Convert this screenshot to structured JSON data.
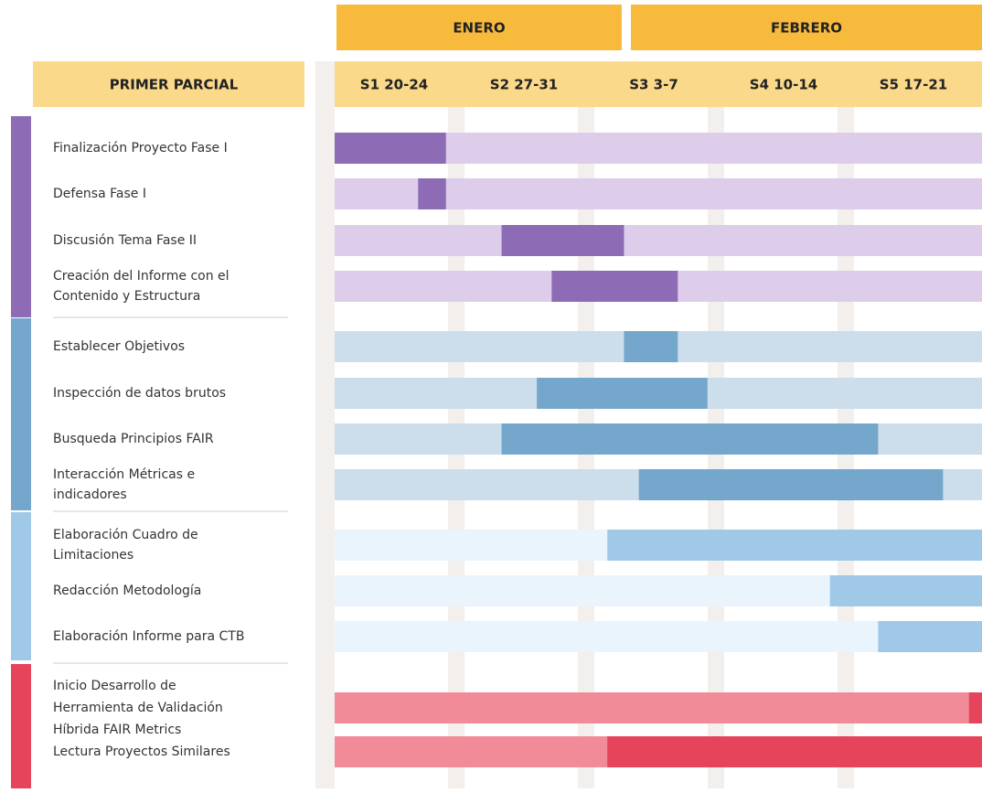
{
  "chart_data": {
    "type": "gantt",
    "header": "PRIMER PARCIAL",
    "months": [
      "ENERO",
      "FEBRERO"
    ],
    "categories": [
      "S1 20-24",
      "S2 27-31",
      "S3 3-7",
      "S4 10-14",
      "S5 17-21"
    ],
    "xlim": [
      0,
      35
    ],
    "groups": [
      {
        "color": "#8e6bb5",
        "light_color": "#ddcdeb",
        "tasks": [
          {
            "name": [
              "Finalización Proyecto Fase I"
            ],
            "start": 0,
            "end": 6
          },
          {
            "name": [
              "Defensa Fase I"
            ],
            "start": 4.5,
            "end": 6
          },
          {
            "name": [
              "Discusión Tema Fase II"
            ],
            "start": 9,
            "end": 15.6
          },
          {
            "name": [
              "Creación del Informe con el",
              "Contenido y Estructura"
            ],
            "start": 11.7,
            "end": 18.5
          }
        ]
      },
      {
        "color": "#74a7cb",
        "light_color": "#ccddec",
        "tasks": [
          {
            "name": [
              "Establecer Objetivos"
            ],
            "start": 15.6,
            "end": 18.5
          },
          {
            "name": [
              "Inspección de datos brutos"
            ],
            "start": 10.9,
            "end": 20.1
          },
          {
            "name": [
              "Busqueda Principios FAIR"
            ],
            "start": 9,
            "end": 29.3
          },
          {
            "name": [
              "Interacción Métricas e",
              "indicadores"
            ],
            "start": 16.4,
            "end": 32.8
          }
        ]
      },
      {
        "color": "#9fc9e7",
        "light_color": "#eaf4fc",
        "tasks": [
          {
            "name": [
              "Elaboración Cuadro de",
              "Limitaciones"
            ],
            "start": 14.7,
            "end": 35
          },
          {
            "name": [
              "Redacción Metodología"
            ],
            "start": 26.7,
            "end": 35
          },
          {
            "name": [
              "Elaboración Informe para CTB"
            ],
            "start": 29.3,
            "end": 35
          }
        ]
      },
      {
        "color": "#e5445a",
        "light_color": "#f28b98",
        "tasks": [
          {
            "name": [
              "Inicio Desarrollo de",
              "Herramienta de Validación",
              "Híbrida FAIR Metrics"
            ],
            "start": 34.2,
            "end": 35
          },
          {
            "name": [
              "Lectura Proyectos Similares"
            ],
            "start": 14.7,
            "end": 35
          }
        ]
      }
    ]
  }
}
